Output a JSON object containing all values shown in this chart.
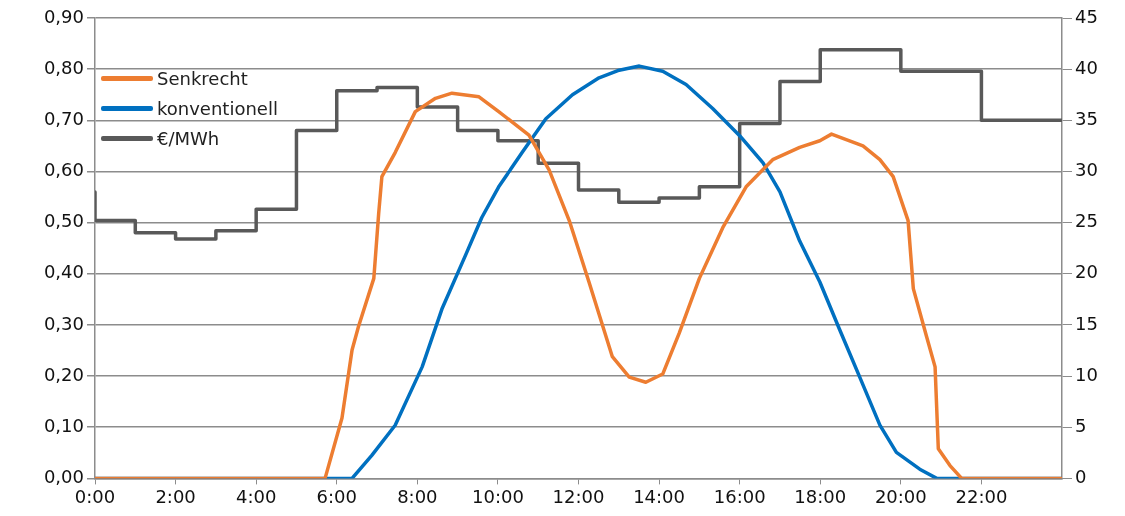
{
  "chart_data": {
    "type": "line",
    "xlim": [
      0,
      24
    ],
    "xticks": [
      {
        "value": 0,
        "label": "0:00"
      },
      {
        "value": 2,
        "label": "2:00"
      },
      {
        "value": 4,
        "label": "4:00"
      },
      {
        "value": 6,
        "label": "6:00"
      },
      {
        "value": 8,
        "label": "8:00"
      },
      {
        "value": 10,
        "label": "10:00"
      },
      {
        "value": 12,
        "label": "12:00"
      },
      {
        "value": 14,
        "label": "14:00"
      },
      {
        "value": 16,
        "label": "16:00"
      },
      {
        "value": 18,
        "label": "18:00"
      },
      {
        "value": 20,
        "label": "20:00"
      },
      {
        "value": 22,
        "label": "22:00"
      }
    ],
    "ylim": [
      0,
      0.9
    ],
    "yticks": [
      {
        "value": 0,
        "label": "0,00"
      },
      {
        "value": 0.1,
        "label": "0,10"
      },
      {
        "value": 0.2,
        "label": "0,20"
      },
      {
        "value": 0.3,
        "label": "0,30"
      },
      {
        "value": 0.4,
        "label": "0,40"
      },
      {
        "value": 0.5,
        "label": "0,50"
      },
      {
        "value": 0.6,
        "label": "0,60"
      },
      {
        "value": 0.7,
        "label": "0,70"
      },
      {
        "value": 0.8,
        "label": "0,80"
      },
      {
        "value": 0.9,
        "label": "0,90"
      }
    ],
    "y2lim": [
      0,
      45
    ],
    "y2ticks": [
      0,
      5,
      10,
      15,
      20,
      25,
      30,
      35,
      40,
      45
    ],
    "grid": "y",
    "legend": "top left",
    "marker": "none",
    "line_style": "solid",
    "series": [
      {
        "name": "Senkrecht",
        "color": "#ed7d31",
        "type": "line",
        "x": [
          0,
          5.71,
          6.13,
          6.38,
          6.54,
          6.92,
          7.04,
          7.12,
          7.45,
          7.95,
          8.45,
          8.86,
          9.53,
          10.02,
          10.77,
          11.27,
          11.77,
          12.26,
          12.84,
          13.26,
          13.67,
          14.09,
          14.5,
          15.0,
          15.58,
          16.16,
          16.82,
          17.49,
          17.99,
          18.28,
          19.06,
          19.48,
          19.81,
          20.18,
          20.31,
          20.64,
          20.85,
          20.93,
          21.22,
          21.51,
          24
        ],
        "values": [
          0,
          0,
          0.118,
          0.251,
          0.297,
          0.391,
          0.517,
          0.59,
          0.637,
          0.717,
          0.743,
          0.753,
          0.746,
          0.717,
          0.671,
          0.603,
          0.504,
          0.384,
          0.238,
          0.198,
          0.188,
          0.204,
          0.284,
          0.391,
          0.49,
          0.57,
          0.623,
          0.647,
          0.66,
          0.673,
          0.65,
          0.623,
          0.59,
          0.504,
          0.371,
          0.277,
          0.218,
          0.058,
          0.025,
          0,
          0
        ]
      },
      {
        "name": "konventionell",
        "color": "#0070c0",
        "type": "line",
        "x": [
          0,
          6.38,
          6.87,
          7.45,
          8.12,
          8.61,
          9.2,
          9.6,
          10.02,
          10.6,
          11.19,
          11.85,
          12.51,
          13.01,
          13.51,
          14.09,
          14.67,
          15.33,
          16.0,
          16.58,
          17.0,
          17.49,
          17.99,
          18.48,
          18.98,
          19.48,
          19.89,
          20.47,
          20.89,
          24
        ],
        "values": [
          0,
          0,
          0.045,
          0.104,
          0.218,
          0.331,
          0.437,
          0.51,
          0.57,
          0.637,
          0.703,
          0.75,
          0.783,
          0.798,
          0.806,
          0.796,
          0.77,
          0.723,
          0.67,
          0.617,
          0.56,
          0.464,
          0.384,
          0.291,
          0.198,
          0.104,
          0.051,
          0.018,
          0,
          0
        ]
      },
      {
        "name": "€/MWh",
        "color": "#595959",
        "type": "step",
        "axis": "y2",
        "x": [
          0,
          1,
          2,
          3,
          4,
          5,
          6,
          7,
          8,
          9,
          10,
          11,
          12,
          13,
          14,
          15,
          16,
          17,
          18,
          19,
          20,
          21,
          22,
          23,
          24
        ],
        "values": [
          28.0,
          25.2,
          24.0,
          23.4,
          24.2,
          26.3,
          34.0,
          37.9,
          38.2,
          36.3,
          34.0,
          33.0,
          30.8,
          28.2,
          27.0,
          27.4,
          28.5,
          34.7,
          38.8,
          41.9,
          41.9,
          39.8,
          39.8,
          35.0,
          35.0
        ]
      }
    ]
  }
}
